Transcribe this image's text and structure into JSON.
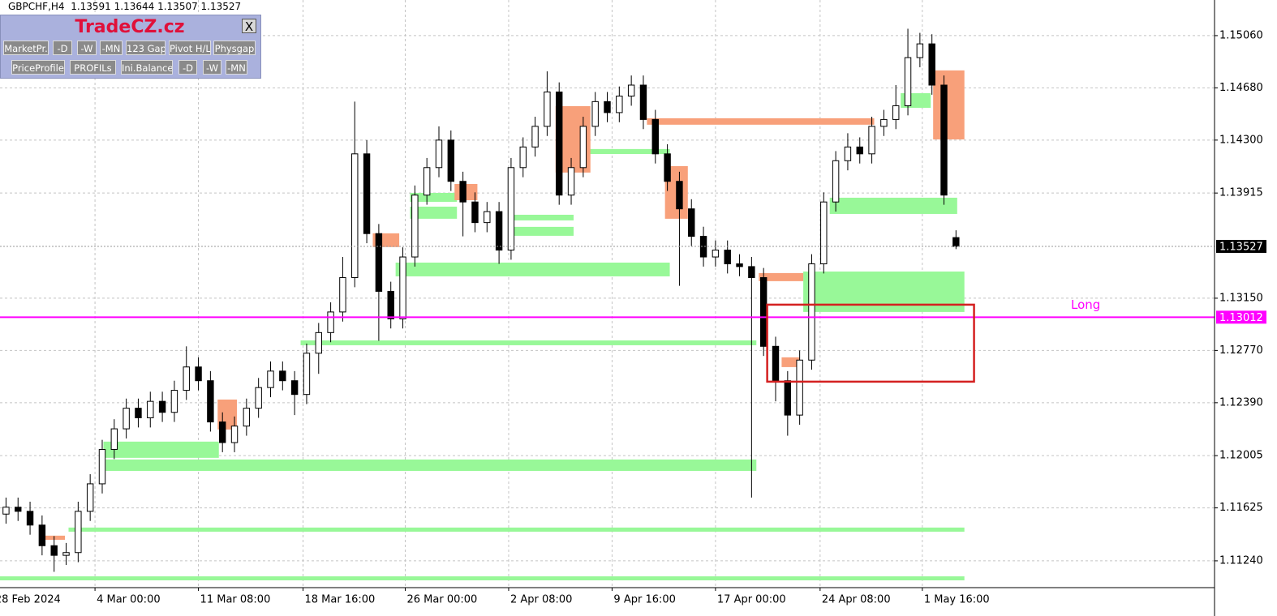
{
  "chart_data": {
    "type": "candlestick",
    "symbol": "GBPCHF,H4",
    "open": [
      1.1158,
      1.1163,
      1.116,
      1.115,
      1.1135,
      1.1128,
      1.113,
      1.116,
      1.118,
      1.1205,
      1.122,
      1.1235,
      1.1228,
      1.124,
      1.1232,
      1.1248,
      1.1265,
      1.1255,
      1.1225,
      1.121,
      1.1222,
      1.1235,
      1.125,
      1.1262,
      1.1255,
      1.1245,
      1.1275,
      1.129,
      1.1305,
      1.133,
      1.142,
      1.1362,
      1.132,
      1.13,
      1.1345,
      1.139,
      1.141,
      1.143,
      1.14,
      1.1385,
      1.137,
      1.1378,
      1.135,
      1.141,
      1.1425,
      1.144,
      1.1465,
      1.139,
      1.141,
      1.144,
      1.1458,
      1.145,
      1.1462,
      1.147,
      1.1445,
      1.142,
      1.14,
      1.138,
      1.136,
      1.1345,
      1.135,
      1.134,
      1.1338,
      1.133,
      1.128,
      1.1255,
      1.123,
      1.127,
      1.134,
      1.1385,
      1.1415,
      1.1425,
      1.142,
      1.144,
      1.1445,
      1.1455,
      1.149,
      1.15,
      1.147,
      1.13591
    ],
    "high": [
      1.117,
      1.117,
      1.1167,
      1.1157,
      1.1142,
      1.1137,
      1.1167,
      1.1187,
      1.1212,
      1.1227,
      1.1242,
      1.1242,
      1.1247,
      1.1247,
      1.1255,
      1.128,
      1.1272,
      1.1262,
      1.1232,
      1.1229,
      1.1242,
      1.1257,
      1.1269,
      1.1269,
      1.1262,
      1.1282,
      1.1297,
      1.1312,
      1.1345,
      1.1458,
      1.143,
      1.1369,
      1.1327,
      1.1352,
      1.1397,
      1.1417,
      1.144,
      1.1437,
      1.1407,
      1.1392,
      1.1385,
      1.1385,
      1.1417,
      1.1432,
      1.1447,
      1.148,
      1.1472,
      1.1417,
      1.1447,
      1.1465,
      1.1465,
      1.1469,
      1.1477,
      1.1477,
      1.1452,
      1.1427,
      1.1407,
      1.1387,
      1.1367,
      1.1357,
      1.1357,
      1.1347,
      1.1345,
      1.1337,
      1.1287,
      1.1262,
      1.1277,
      1.1347,
      1.1392,
      1.1422,
      1.1435,
      1.1432,
      1.1447,
      1.1452,
      1.147,
      1.1511,
      1.1508,
      1.1507,
      1.1477,
      1.13644
    ],
    "low": [
      1.1151,
      1.1153,
      1.1143,
      1.1128,
      1.1116,
      1.1121,
      1.1123,
      1.1153,
      1.1173,
      1.1198,
      1.1213,
      1.1221,
      1.1221,
      1.1225,
      1.1225,
      1.1241,
      1.1248,
      1.1218,
      1.1203,
      1.1203,
      1.1215,
      1.1228,
      1.1243,
      1.1248,
      1.123,
      1.1238,
      1.126,
      1.1283,
      1.1298,
      1.1323,
      1.1355,
      1.1284,
      1.1293,
      1.1293,
      1.1338,
      1.1383,
      1.1403,
      1.1393,
      1.136,
      1.1363,
      1.1363,
      1.134,
      1.1343,
      1.1403,
      1.1418,
      1.1433,
      1.1383,
      1.1383,
      1.1403,
      1.1433,
      1.1443,
      1.1443,
      1.1455,
      1.1438,
      1.1413,
      1.1393,
      1.1324,
      1.1353,
      1.1338,
      1.1338,
      1.1333,
      1.1331,
      1.117,
      1.1273,
      1.124,
      1.1215,
      1.1223,
      1.1263,
      1.1333,
      1.1378,
      1.1408,
      1.1413,
      1.1413,
      1.1433,
      1.1438,
      1.1448,
      1.1483,
      1.1463,
      1.1383,
      1.13507
    ],
    "close": [
      1.1163,
      1.116,
      1.115,
      1.1135,
      1.1128,
      1.113,
      1.116,
      1.118,
      1.1205,
      1.122,
      1.1235,
      1.1228,
      1.124,
      1.1232,
      1.1248,
      1.1265,
      1.1255,
      1.1225,
      1.121,
      1.1222,
      1.1235,
      1.125,
      1.1262,
      1.1255,
      1.1245,
      1.1275,
      1.129,
      1.1305,
      1.133,
      1.142,
      1.1362,
      1.132,
      1.13,
      1.1345,
      1.139,
      1.141,
      1.143,
      1.14,
      1.1385,
      1.137,
      1.1378,
      1.135,
      1.141,
      1.1425,
      1.144,
      1.1465,
      1.139,
      1.141,
      1.144,
      1.1458,
      1.145,
      1.1462,
      1.147,
      1.1445,
      1.142,
      1.14,
      1.138,
      1.136,
      1.1345,
      1.135,
      1.134,
      1.1338,
      1.133,
      1.128,
      1.1255,
      1.123,
      1.127,
      1.134,
      1.1385,
      1.1415,
      1.1425,
      1.142,
      1.144,
      1.1445,
      1.1455,
      1.149,
      1.15,
      1.147,
      1.139,
      1.13527
    ],
    "up_color": "#ffffff",
    "down_color": "#000000",
    "xlim": [
      -0.5,
      100.5
    ],
    "xticks": [
      {
        "value": -1.05,
        "label": "28 Feb 2024"
      },
      {
        "value": 7.4,
        "label": "4 Mar 00:00"
      },
      {
        "value": 16.0,
        "label": "11 Mar 08:00"
      },
      {
        "value": 24.7,
        "label": "18 Mar 16:00"
      },
      {
        "value": 33.2,
        "label": "26 Mar 00:00"
      },
      {
        "value": 41.8,
        "label": "2 Apr 08:00"
      },
      {
        "value": 50.4,
        "label": "9 Apr 16:00"
      },
      {
        "value": 59.0,
        "label": "17 Apr 00:00"
      },
      {
        "value": 67.7,
        "label": "24 Apr 08:00"
      },
      {
        "value": 76.2,
        "label": "1 May 16:00"
      }
    ],
    "ylim": [
      1.11045,
      1.15319
    ],
    "yticks": [
      {
        "value": 1.1506,
        "label": "1.15060"
      },
      {
        "value": 1.1468,
        "label": "1.14680"
      },
      {
        "value": 1.143,
        "label": "1.14300"
      },
      1.13915,
      {
        "value": 1.1315,
        "label": "1.13150"
      },
      {
        "value": 1.1277,
        "label": "1.12770"
      },
      {
        "value": 1.1239,
        "label": "1.12390"
      },
      1.12005,
      1.11625,
      {
        "value": 1.1124,
        "label": "1.11240"
      }
    ],
    "grid": true,
    "zones": [
      {
        "x": [
          -0.5,
          79.7
        ],
        "y": [
          1.11127,
          1.11098
        ],
        "color": "#98f898"
      },
      {
        "x": [
          5.2,
          79.7
        ],
        "y": [
          1.11482,
          1.11452
        ],
        "color": "#98f898"
      },
      {
        "x": [
          8.1,
          17.7
        ],
        "y": [
          1.12107,
          1.11989
        ],
        "color": "#98f898"
      },
      {
        "x": [
          8.3,
          62.4
        ],
        "y": [
          1.11977,
          1.11894
        ],
        "color": "#98f898"
      },
      {
        "x": [
          24.5,
          62.4
        ],
        "y": [
          1.12843,
          1.12808
        ],
        "color": "#98f898"
      },
      {
        "x": [
          32.4,
          55.2
        ],
        "y": [
          1.13409,
          1.13309
        ],
        "color": "#98f898"
      },
      {
        "x": [
          66.3,
          79.7
        ],
        "y": [
          1.13344,
          1.1305
        ],
        "color": "#98f898"
      },
      {
        "x": [
          68.5,
          79.1
        ],
        "y": [
          1.13881,
          1.13763
        ],
        "color": "#98f898"
      },
      {
        "x": [
          74.4,
          76.9
        ],
        "y": [
          1.14641,
          1.14535
        ],
        "color": "#98f898"
      },
      {
        "x": [
          48.2,
          55.2
        ],
        "y": [
          1.14235,
          1.14199
        ],
        "color": "#98f898"
      },
      {
        "x": [
          41.9,
          47.2
        ],
        "y": [
          1.13757,
          1.13716
        ],
        "color": "#98f898"
      },
      {
        "x": [
          41.9,
          47.2
        ],
        "y": [
          1.13669,
          1.13604
        ],
        "color": "#98f898"
      },
      {
        "x": [
          33.6,
          37.5
        ],
        "y": [
          1.13916,
          1.13851
        ],
        "color": "#98f898"
      },
      {
        "x": [
          33.6,
          37.5
        ],
        "y": [
          1.13816,
          1.13728
        ],
        "color": "#98f898"
      },
      {
        "x": [
          53.3,
          72.2
        ],
        "y": [
          1.14459,
          1.14412
        ],
        "color": "#f8a07a"
      },
      {
        "x": [
          77.1,
          79.7
        ],
        "y": [
          1.14807,
          1.14305
        ],
        "color": "#f8a07a"
      },
      {
        "x": [
          45.7,
          48.6
        ],
        "y": [
          1.14547,
          1.14064
        ],
        "color": "#f8a07a"
      },
      {
        "x": [
          54.8,
          56.7
        ],
        "y": [
          1.14111,
          1.13728
        ],
        "color": "#f8a07a"
      },
      {
        "x": [
          62.6,
          66.3
        ],
        "y": [
          1.13333,
          1.13274
        ],
        "color": "#f8a07a"
      },
      {
        "x": [
          17.6,
          19.2
        ],
        "y": [
          1.12413,
          1.12195
        ],
        "color": "#f8a07a"
      },
      {
        "x": [
          30.5,
          32.7
        ],
        "y": [
          1.13622,
          1.13522
        ],
        "color": "#f8a07a"
      },
      {
        "x": [
          64.5,
          66.0
        ],
        "y": [
          1.1272,
          1.12649
        ],
        "color": "#f8a07a"
      },
      {
        "x": [
          37.3,
          39.2
        ],
        "y": [
          1.13981,
          1.13863
        ],
        "color": "#f8a07a"
      },
      {
        "x": [
          2.9,
          4.9
        ],
        "y": [
          1.11423,
          1.11393
        ],
        "color": "#f8a07a"
      }
    ],
    "hline": {
      "value": 1.13012,
      "label": "Long",
      "color": "#ff00ff"
    },
    "box": {
      "x": [
        63.3,
        80.5
      ],
      "y": [
        1.13103,
        1.12543
      ],
      "color": "#d42020"
    }
  },
  "panel": {
    "title": "TradeCZ.cz",
    "close": "X",
    "row1": [
      "MarketPr.",
      "-D",
      "-W",
      "-MN",
      "123 Gap",
      "Pivot H/L",
      "Physgap"
    ],
    "row2": [
      "PriceProfile",
      "PROFILs",
      "Ini.Balance",
      "-D",
      "-W",
      "-MN"
    ]
  }
}
